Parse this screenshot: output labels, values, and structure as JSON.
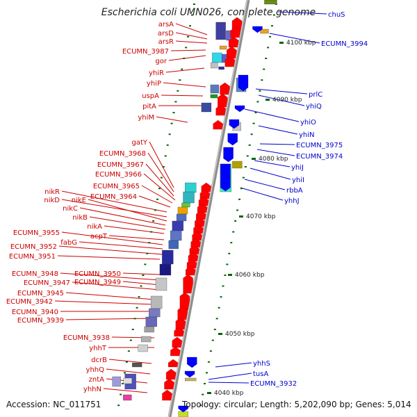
{
  "title": "Escherichia coli UMN026, complete genome",
  "footer": {
    "accession": "Accession: NC_011751",
    "topology": "Topology: circular; Length: 5,202,090 bp; Genes: 5,014"
  },
  "colors": {
    "left_label": "#cc0000",
    "right_label": "#0000cc",
    "backbone": "#999999",
    "tick": "#006600",
    "forward_arrow": "#ff0000",
    "reverse_arrow": "#0000ff"
  },
  "scale_labels": [
    "4100 kbp",
    "4090 kbp",
    "4080 kbp",
    "4070 kbp",
    "4060 kbp",
    "4050 kbp",
    "4040 kbp"
  ],
  "left_genes": [
    "arsA",
    "arsD",
    "arsR",
    "ECUMN_3987",
    "gor",
    "yhiR",
    "yhiP",
    "uspA",
    "pitA",
    "yhiM",
    "gatY",
    "ECUMN_3968",
    "ECUMN_3967",
    "ECUMN_3966",
    "ECUMN_3965",
    "ECUMN_3964",
    "nikR",
    "nikD",
    "nikE",
    "nikC",
    "nikB",
    "nikA",
    "acpT",
    "ECUMN_3955",
    "fabG",
    "ECUMN_3952",
    "ECUMN_3951",
    "ECUMN_3950",
    "ECUMN_3948",
    "ECUMN_3949",
    "ECUMN_3947",
    "ECUMN_3945",
    "ECUMN_3942",
    "ECUMN_3940",
    "ECUMN_3939",
    "ECUMN_3938",
    "yhhT",
    "dcrB",
    "yhhQ",
    "zntA",
    "yhhN"
  ],
  "right_genes": [
    "chuS",
    "ECUMN_3994",
    "prlC",
    "yhiQ",
    "yhiO",
    "yhiN",
    "ECUMN_3975",
    "ECUMN_3974",
    "yhiJ",
    "yhiI",
    "rbbA",
    "yhhJ",
    "yhhS",
    "tusA",
    "ECUMN_3932"
  ]
}
